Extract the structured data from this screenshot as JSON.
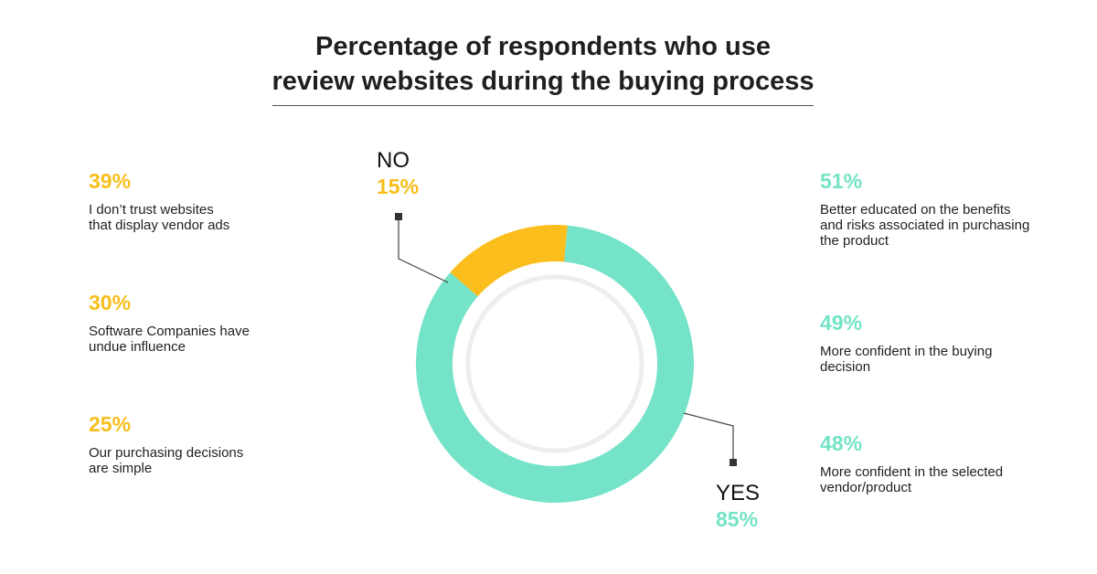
{
  "title": {
    "line1": "Percentage of respondents who use",
    "line2": "review websites during the buying process"
  },
  "colors": {
    "yes": "#74e3c7",
    "no": "#fbbe1d"
  },
  "chart_data": [
    {
      "type": "pie",
      "categories": [
        "YES",
        "NO"
      ],
      "values": [
        85,
        15
      ],
      "labels": [
        "85%",
        "15%"
      ]
    },
    {
      "type": "bar",
      "orientation": "horizontal",
      "categories": [
        "I don’t trust websites that display vendor ads",
        "Software Companies have undue influence",
        "Our purchasing decisions are simple"
      ],
      "values": [
        39,
        30,
        25
      ],
      "labels": [
        "39%",
        "30%",
        "25%"
      ]
    },
    {
      "type": "bar",
      "orientation": "horizontal",
      "categories": [
        "Better educated on the benefits and risks associated in purchasing the product",
        "More confident in the buying decision",
        "More confident in the selected vendor/product"
      ],
      "values": [
        51,
        49,
        48
      ],
      "labels": [
        "51%",
        "49%",
        "48%"
      ]
    }
  ],
  "left_reasons": [
    {
      "pct": "39%",
      "line1": "I don’t trust websites",
      "line2": "that display vendor ads",
      "line3": ""
    },
    {
      "pct": "30%",
      "line1": "Software Companies have",
      "line2": "undue influence",
      "line3": ""
    },
    {
      "pct": "25%",
      "line1": "Our purchasing decisions",
      "line2": "are simple",
      "line3": ""
    }
  ],
  "right_reasons": [
    {
      "pct": "51%",
      "line1": "Better educated on the benefits",
      "line2": "and risks associated in purchasing",
      "line3": "the product"
    },
    {
      "pct": "49%",
      "line1": "More confident in the buying",
      "line2": "decision",
      "line3": ""
    },
    {
      "pct": "48%",
      "line1": "More confident in the selected",
      "line2": "vendor/product",
      "line3": ""
    }
  ],
  "callouts": {
    "no": {
      "word": "NO",
      "value": "15%"
    },
    "yes": {
      "word": "YES",
      "value": "85%"
    }
  }
}
